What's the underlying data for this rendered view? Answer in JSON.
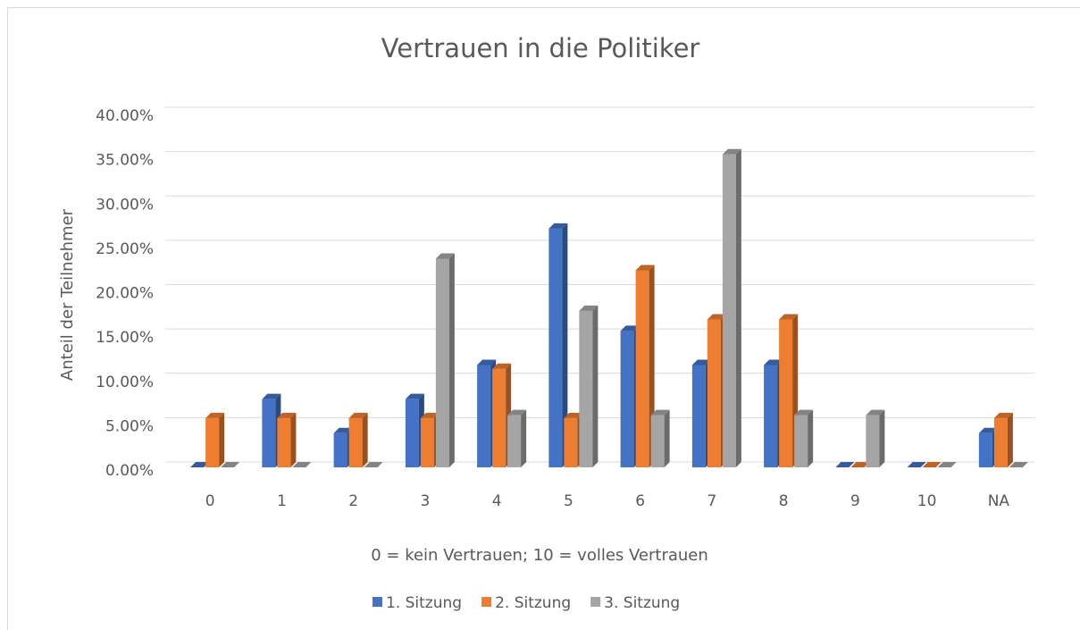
{
  "chart_data": {
    "type": "bar3d",
    "title": "Vertrauen in die Politiker",
    "xlabel": "0 = kein Vertrauen; 10 = volles Vertrauen",
    "ylabel": "Anteil der Teilnehmer",
    "categories": [
      "0",
      "1",
      "2",
      "3",
      "4",
      "5",
      "6",
      "7",
      "8",
      "9",
      "10",
      "NA"
    ],
    "series": [
      {
        "name": "1. Sitzung",
        "color": "#4472c4",
        "values": [
          0,
          7.69,
          3.85,
          7.69,
          11.54,
          26.92,
          15.38,
          11.54,
          11.54,
          0,
          0,
          3.85
        ]
      },
      {
        "name": "2. Sitzung",
        "color": "#ed7d31",
        "values": [
          5.56,
          5.56,
          5.56,
          5.56,
          11.11,
          5.56,
          22.22,
          16.67,
          16.67,
          0,
          0,
          5.56
        ]
      },
      {
        "name": "3. Sitzung",
        "color": "#a5a5a5",
        "values": [
          0,
          0,
          0,
          23.53,
          5.88,
          17.65,
          5.88,
          35.29,
          5.88,
          5.88,
          0,
          0
        ]
      }
    ],
    "ylim": [
      0,
      40
    ],
    "yticks": [
      {
        "value": 0,
        "label": "0.00%"
      },
      {
        "value": 5,
        "label": "5.00%"
      },
      {
        "value": 10,
        "label": "10.00%"
      },
      {
        "value": 15,
        "label": "15.00%"
      },
      {
        "value": 20,
        "label": "20.00%"
      },
      {
        "value": 25,
        "label": "25.00%"
      },
      {
        "value": 30,
        "label": "30.00%"
      },
      {
        "value": 35,
        "label": "35.00%"
      },
      {
        "value": 40,
        "label": "40.00%"
      }
    ],
    "grid": true,
    "legend": "bottom"
  }
}
